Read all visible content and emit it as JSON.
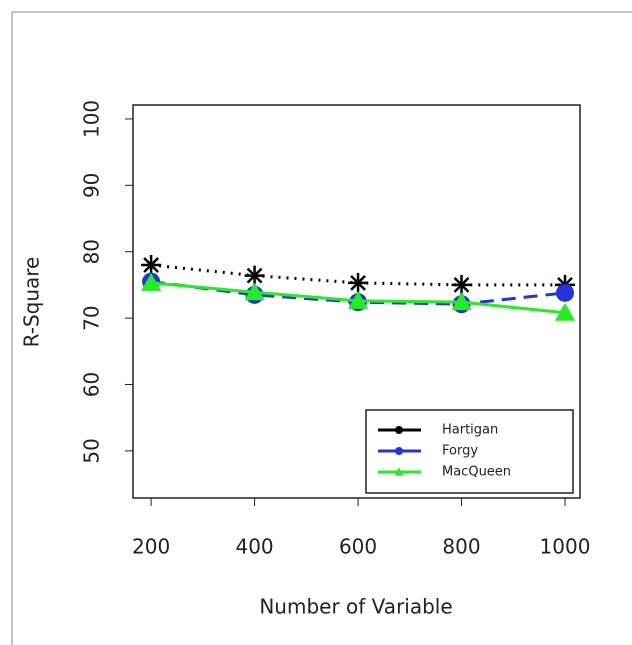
{
  "chart_data": {
    "type": "line",
    "x_label": "Number of Variable",
    "y_label": "R-Square",
    "x": [
      200,
      400,
      600,
      800,
      1000
    ],
    "series": [
      {
        "name": "Hartigan",
        "color": "#000000",
        "dash": "dotted",
        "marker": "star",
        "values": [
          78,
          76.4,
          75.3,
          75,
          75
        ]
      },
      {
        "name": "Forgy",
        "color": "#2233dd",
        "dash": "dashed",
        "marker": "circle",
        "values": [
          75.5,
          73.5,
          72.4,
          72.1,
          73.8
        ]
      },
      {
        "name": "MacQueen",
        "color": "#22ee22",
        "dash": "solid",
        "marker": "triangle",
        "values": [
          75.3,
          73.9,
          72.6,
          72.4,
          70.8
        ]
      }
    ],
    "xlim": [
      165,
      1029
    ],
    "ylim": [
      42.9,
      102.1
    ],
    "xticks": [
      200,
      400,
      600,
      800,
      1000
    ],
    "yticks": [
      50,
      60,
      70,
      80,
      90,
      100
    ],
    "legend": "bottom-right"
  }
}
